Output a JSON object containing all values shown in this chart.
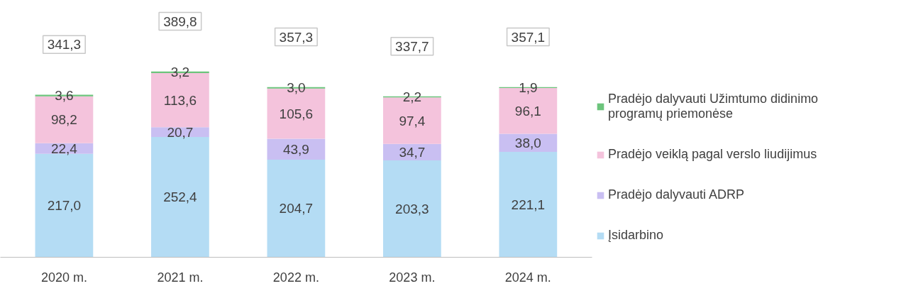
{
  "chart_data": {
    "type": "bar",
    "stacked": true,
    "categories": [
      "2020 m.",
      "2021 m.",
      "2022 m.",
      "2023 m.",
      "2024 m."
    ],
    "series": [
      {
        "name": "Įsidarbino",
        "color": "#b4dcf4",
        "values": [
          217.0,
          252.4,
          204.7,
          203.3,
          221.1
        ],
        "value_labels": [
          "217,0",
          "252,4",
          "204,7",
          "203,3",
          "221,1"
        ]
      },
      {
        "name": "Pradėjo dalyvauti ADRP",
        "color": "#c9bff2",
        "values": [
          22.4,
          20.7,
          43.9,
          34.7,
          38.0
        ],
        "value_labels": [
          "22,4",
          "20,7",
          "43,9",
          "34,7",
          "38,0"
        ]
      },
      {
        "name": "Pradėjo veiklą pagal verslo liudijimus",
        "color": "#f4c3dc",
        "values": [
          98.2,
          113.6,
          105.6,
          97.4,
          96.1
        ],
        "value_labels": [
          "98,2",
          "113,6",
          "105,6",
          "97,4",
          "96,1"
        ]
      },
      {
        "name": "Pradėjo dalyvauti Užimtumo didinimo programų priemonėse",
        "color": "#6cc47c",
        "values": [
          3.6,
          3.2,
          3.0,
          2.2,
          1.9
        ],
        "value_labels": [
          "3,6",
          "3,2",
          "3,0",
          "2,2",
          "1,9"
        ]
      }
    ],
    "totals": [
      "341,3",
      "389,8",
      "357,3",
      "337,7",
      "357,1"
    ],
    "grid": false,
    "legend": "right"
  }
}
